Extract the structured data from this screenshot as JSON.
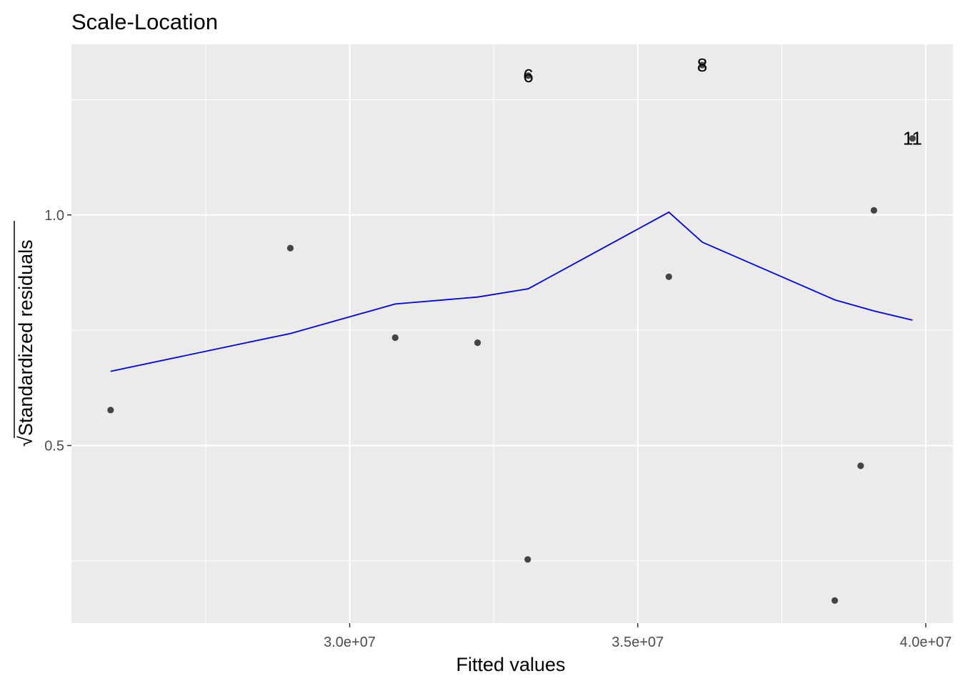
{
  "chart_data": {
    "type": "scatter",
    "title": "Scale-Location",
    "xlabel": "Fitted values",
    "ylabel_radical": "√",
    "ylabel": "Standardized residuals",
    "xlim": [
      25170000,
      40470000
    ],
    "ylim": [
      0.115,
      1.37
    ],
    "x_major_ticks": [
      30000000,
      35000000,
      40000000
    ],
    "x_tick_labels": [
      "3.0e+07",
      "3.5e+07",
      "4.0e+07"
    ],
    "x_minor_ticks": [
      27500000,
      32500000,
      37500000
    ],
    "y_major_ticks": [
      0.5,
      1.0
    ],
    "y_tick_labels": [
      "0.5",
      "1.0"
    ],
    "y_minor_ticks": [
      0.25,
      0.75,
      1.25
    ],
    "grid": true,
    "points": [
      {
        "x": 25850000,
        "y": 0.577
      },
      {
        "x": 28970000,
        "y": 0.928
      },
      {
        "x": 30790000,
        "y": 0.734
      },
      {
        "x": 32220000,
        "y": 0.723
      },
      {
        "x": 33090000,
        "y": 0.253
      },
      {
        "x": 33100000,
        "y": 1.302,
        "label": "6"
      },
      {
        "x": 35540000,
        "y": 0.866
      },
      {
        "x": 36120000,
        "y": 1.325,
        "label": "8"
      },
      {
        "x": 38420000,
        "y": 0.164
      },
      {
        "x": 38870000,
        "y": 0.456
      },
      {
        "x": 39100000,
        "y": 1.01
      },
      {
        "x": 39770000,
        "y": 1.166,
        "label": "11"
      }
    ],
    "smooth_line": {
      "color": "#0000ee",
      "x": [
        25850000,
        28970000,
        30790000,
        32220000,
        33100000,
        35540000,
        36120000,
        38420000,
        39100000,
        39770000
      ],
      "y": [
        0.661,
        0.743,
        0.807,
        0.822,
        0.84,
        1.006,
        0.941,
        0.816,
        0.792,
        0.772
      ]
    },
    "colors": {
      "panel_background": "#ebebeb",
      "grid": "#ffffff",
      "points": "#444444",
      "smooth": "#0000ee"
    }
  }
}
